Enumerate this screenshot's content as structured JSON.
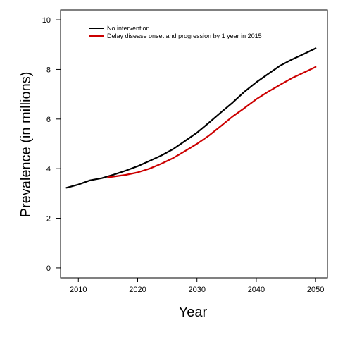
{
  "chart_data": {
    "type": "line",
    "title": "",
    "xlabel": "Year",
    "ylabel": "Prevalence (in millions)",
    "xlim": [
      2007,
      2052
    ],
    "ylim": [
      -0.4,
      10.4
    ],
    "xticks": [
      2010,
      2020,
      2030,
      2040,
      2050
    ],
    "yticks": [
      0,
      2,
      4,
      6,
      8,
      10
    ],
    "grid": false,
    "legend_position": "top-left",
    "series": [
      {
        "name": "No intervention",
        "color": "#000000",
        "x": [
          2008,
          2010,
          2012,
          2014,
          2016,
          2018,
          2020,
          2022,
          2024,
          2026,
          2028,
          2030,
          2032,
          2034,
          2036,
          2038,
          2040,
          2042,
          2044,
          2046,
          2048,
          2050
        ],
        "y": [
          3.23,
          3.36,
          3.53,
          3.62,
          3.76,
          3.92,
          4.1,
          4.31,
          4.53,
          4.79,
          5.12,
          5.45,
          5.85,
          6.26,
          6.66,
          7.1,
          7.48,
          7.82,
          8.15,
          8.4,
          8.62,
          8.85
        ]
      },
      {
        "name": "Delay disease onset and progression by 1 year in 2015",
        "color": "#cc0000",
        "x": [
          2015,
          2016,
          2018,
          2020,
          2022,
          2024,
          2026,
          2028,
          2030,
          2032,
          2034,
          2036,
          2038,
          2040,
          2042,
          2044,
          2046,
          2048,
          2050
        ],
        "y": [
          3.65,
          3.68,
          3.75,
          3.85,
          4.0,
          4.2,
          4.43,
          4.71,
          5.0,
          5.33,
          5.71,
          6.1,
          6.44,
          6.8,
          7.1,
          7.38,
          7.65,
          7.87,
          8.1
        ]
      }
    ]
  }
}
